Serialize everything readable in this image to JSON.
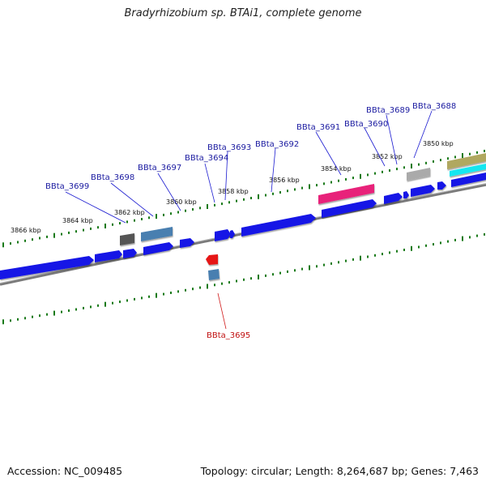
{
  "title": "Bradyrhizobium sp. BTAi1, complete genome",
  "accession_text": "Accession: NC_009485",
  "summary_text": "Topology: circular; Length: 8,264,687 bp; Genes: 7,463",
  "colors": {
    "forward_cds": "#1414e6",
    "reverse_cds": "#e61414",
    "rna_gray": "#aaaaaa",
    "dark_gray": "#555555",
    "pseudo_steel": "#4a7fb0",
    "pink": "#e8207a",
    "olive": "#b0a860",
    "cyan": "#19e6f0",
    "tick_green": "#1a7a1a",
    "backbone": "#888888",
    "forward_label": "#1a1aa0",
    "reverse_label": "#c01010"
  },
  "scale_labels": [
    "3866 kbp",
    "3864 kbp",
    "3862 kbp",
    "3860 kbp",
    "3858 kbp",
    "3856 kbp",
    "3854 kbp",
    "3852 kbp",
    "3850 kbp"
  ],
  "gene_labels_forward": [
    "BBta_3699",
    "BBta_3698",
    "BBta_3697",
    "BBta_3694",
    "BBta_3693",
    "BBta_3692",
    "BBta_3691",
    "BBta_3690",
    "BBta_3689",
    "BBta_3688"
  ],
  "gene_labels_reverse": [
    "BBta_3695"
  ]
}
